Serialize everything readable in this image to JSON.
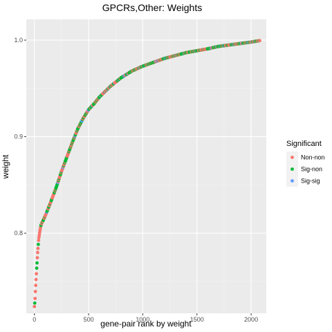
{
  "chart_data": {
    "type": "scatter",
    "title": "GPCRs,Other: Weights",
    "xlabel": "gene-pair rank by weight",
    "ylabel": "weight",
    "xlim": [
      -75,
      2140
    ],
    "ylim": [
      0.717,
      1.0215
    ],
    "x_ticks": [
      0,
      500,
      1000,
      1500,
      2000
    ],
    "x_tick_labels": [
      "0",
      "500",
      "1000",
      "1500",
      "2000"
    ],
    "y_ticks": [
      0.8,
      0.9,
      1.0
    ],
    "y_tick_labels": [
      "0.8",
      "0.9",
      "1.0"
    ],
    "grid": true,
    "legend": {
      "title": "Significant",
      "position": "right",
      "entries": [
        {
          "label": "Non-non",
          "color": "#F8766D"
        },
        {
          "label": "Sig-non",
          "color": "#00BA38"
        },
        {
          "label": "Sig-sig",
          "color": "#619CFF"
        }
      ]
    },
    "curve": {
      "x": [
        0,
        5,
        10,
        20,
        30,
        40,
        50,
        60,
        70,
        80,
        100,
        150,
        200,
        250,
        300,
        350,
        400,
        450,
        500,
        550,
        600,
        700,
        800,
        900,
        1000,
        1100,
        1200,
        1300,
        1400,
        1500,
        1600,
        1700,
        1800,
        1900,
        2000,
        2080
      ],
      "y": [
        0.724,
        0.73,
        0.742,
        0.762,
        0.78,
        0.794,
        0.802,
        0.808,
        0.811,
        0.813,
        0.818,
        0.832,
        0.847,
        0.864,
        0.879,
        0.894,
        0.908,
        0.919,
        0.928,
        0.934,
        0.941,
        0.952,
        0.961,
        0.968,
        0.973,
        0.977,
        0.981,
        0.984,
        0.987,
        0.989,
        0.991,
        0.9935,
        0.995,
        0.9965,
        0.998,
        0.9995
      ]
    },
    "n_points": 2080
  },
  "colors": {
    "panel": "#EBEBEB",
    "grid_major": "#FFFFFF",
    "grid_minor": "#F5F5F5",
    "legend_key_bg": "#F2F2F2"
  }
}
